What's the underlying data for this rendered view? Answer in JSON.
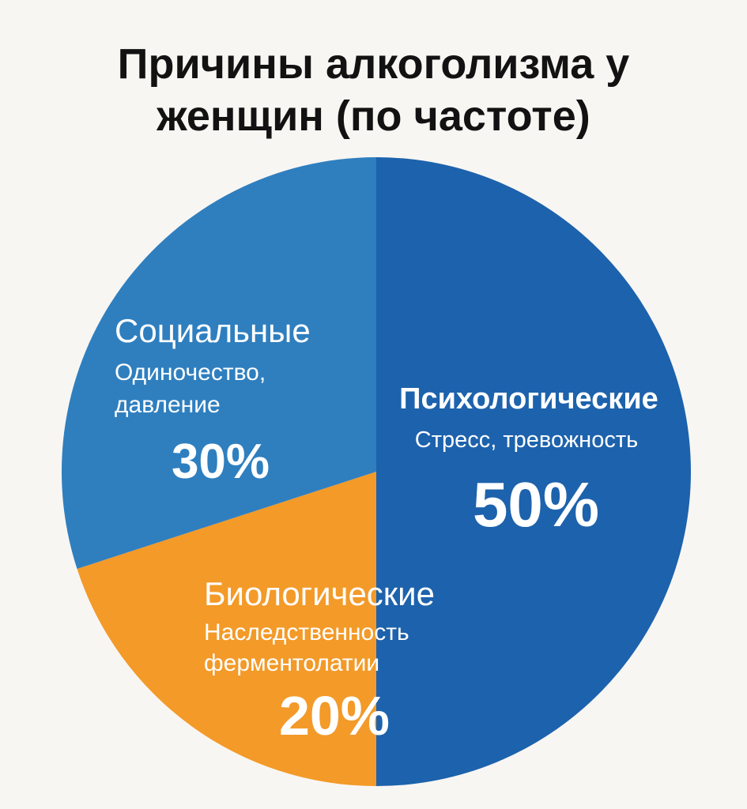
{
  "chart_data": {
    "type": "pie",
    "title_lines": [
      "Причины алкоголизма у",
      "женщин (по частоте)"
    ],
    "slices": [
      {
        "name": "Психологические",
        "description_lines": [
          "Стресс, тревожность"
        ],
        "percent_label": "50%",
        "value": 50,
        "color": "#1d62ac"
      },
      {
        "name": "Биологические",
        "description_lines": [
          "Наследственность",
          "ферментолатии"
        ],
        "percent_label": "20%",
        "value": 20,
        "color": "#f39a28"
      },
      {
        "name": "Социальные",
        "description_lines": [
          "Одиночество,",
          "давление"
        ],
        "percent_label": "30%",
        "value": 30,
        "color": "#2f7fbf"
      }
    ],
    "legend": "none"
  }
}
